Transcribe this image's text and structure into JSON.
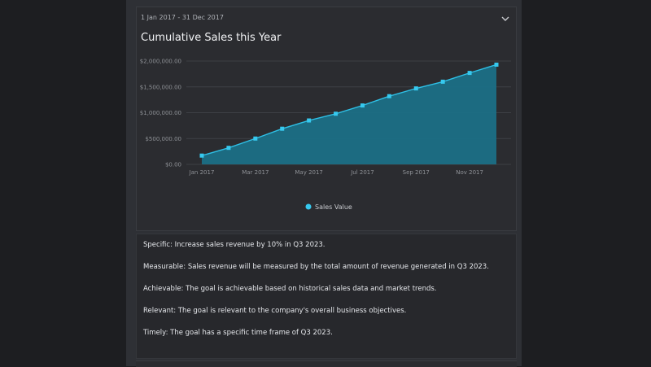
{
  "card": {
    "date_range": "1 Jan 2017 - 31 Dec 2017",
    "title": "Cumulative Sales this Year"
  },
  "colors": {
    "line": "#2ec0e6",
    "area": "#1b6f86",
    "marker": "#36c9ef",
    "grid": "#3e4045"
  },
  "icons": {
    "collapse": "chevron-down-icon",
    "legend": "circle-marker"
  },
  "chart_data": {
    "type": "area",
    "ylim": [
      0,
      2000000
    ],
    "yticks": [
      {
        "value": 0,
        "label": "$0.00"
      },
      {
        "value": 500000,
        "label": "$500,000.00"
      },
      {
        "value": 1000000,
        "label": "$1,000,000.00"
      },
      {
        "value": 1500000,
        "label": "$1,500,000.00"
      },
      {
        "value": 2000000,
        "label": "$2,000,000.00"
      }
    ],
    "xticks": [
      {
        "index": 0,
        "label": "Jan 2017"
      },
      {
        "index": 2,
        "label": "Mar 2017"
      },
      {
        "index": 4,
        "label": "May 2017"
      },
      {
        "index": 6,
        "label": "Jul 2017"
      },
      {
        "index": 8,
        "label": "Sep 2017"
      },
      {
        "index": 10,
        "label": "Nov 2017"
      }
    ],
    "categories": [
      "Jan 2017",
      "Feb 2017",
      "Mar 2017",
      "Apr 2017",
      "May 2017",
      "Jun 2017",
      "Jul 2017",
      "Aug 2017",
      "Sep 2017",
      "Oct 2017",
      "Nov 2017",
      "Dec 2017"
    ],
    "series": [
      {
        "name": "Sales Value",
        "values": [
          170000,
          320000,
          500000,
          690000,
          850000,
          980000,
          1140000,
          1320000,
          1470000,
          1600000,
          1770000,
          1930000
        ]
      }
    ],
    "legend_position": "bottom",
    "grid": true
  },
  "notes": [
    "Specific: Increase sales revenue by 10% in Q3 2023.",
    "Measurable: Sales revenue will be measured by the total amount of revenue generated in Q3 2023.",
    "Achievable: The goal is achievable based on historical sales data and market trends.",
    "Relevant: The goal is relevant to the company's overall business objectives.",
    "Timely: The goal has a specific time frame of Q3 2023."
  ]
}
